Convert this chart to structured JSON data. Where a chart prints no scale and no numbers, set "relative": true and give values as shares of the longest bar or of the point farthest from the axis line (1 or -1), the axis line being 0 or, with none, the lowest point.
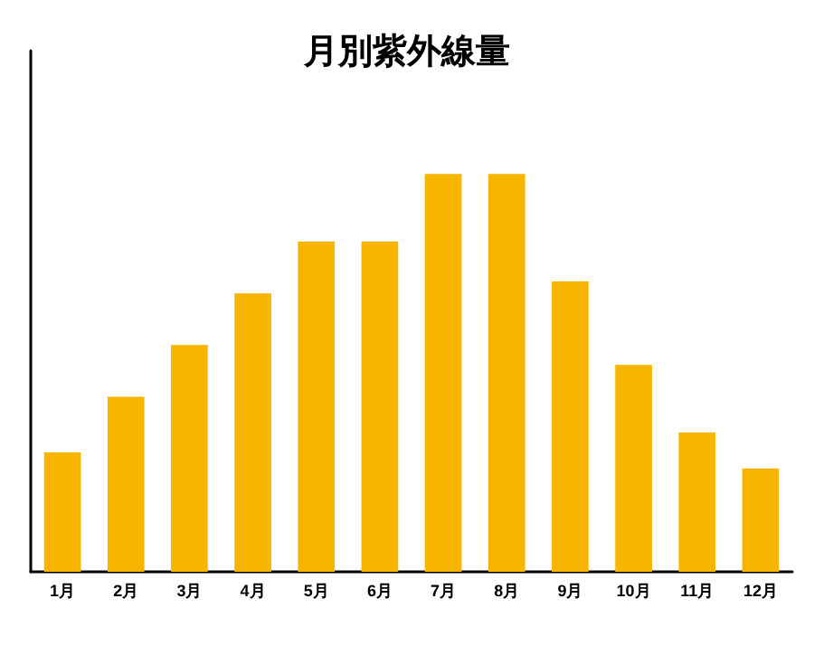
{
  "chart_data": {
    "type": "bar",
    "title": "月別紫外線量",
    "categories": [
      "1月",
      "2月",
      "3月",
      "4月",
      "5月",
      "6月",
      "7月",
      "8月",
      "9月",
      "10月",
      "11月",
      "12月"
    ],
    "values": [
      0.3,
      0.44,
      0.57,
      0.7,
      0.83,
      0.83,
      1,
      1,
      0.73,
      0.52,
      0.35,
      0.26
    ],
    "color": "#f7b500",
    "relative": true
  }
}
